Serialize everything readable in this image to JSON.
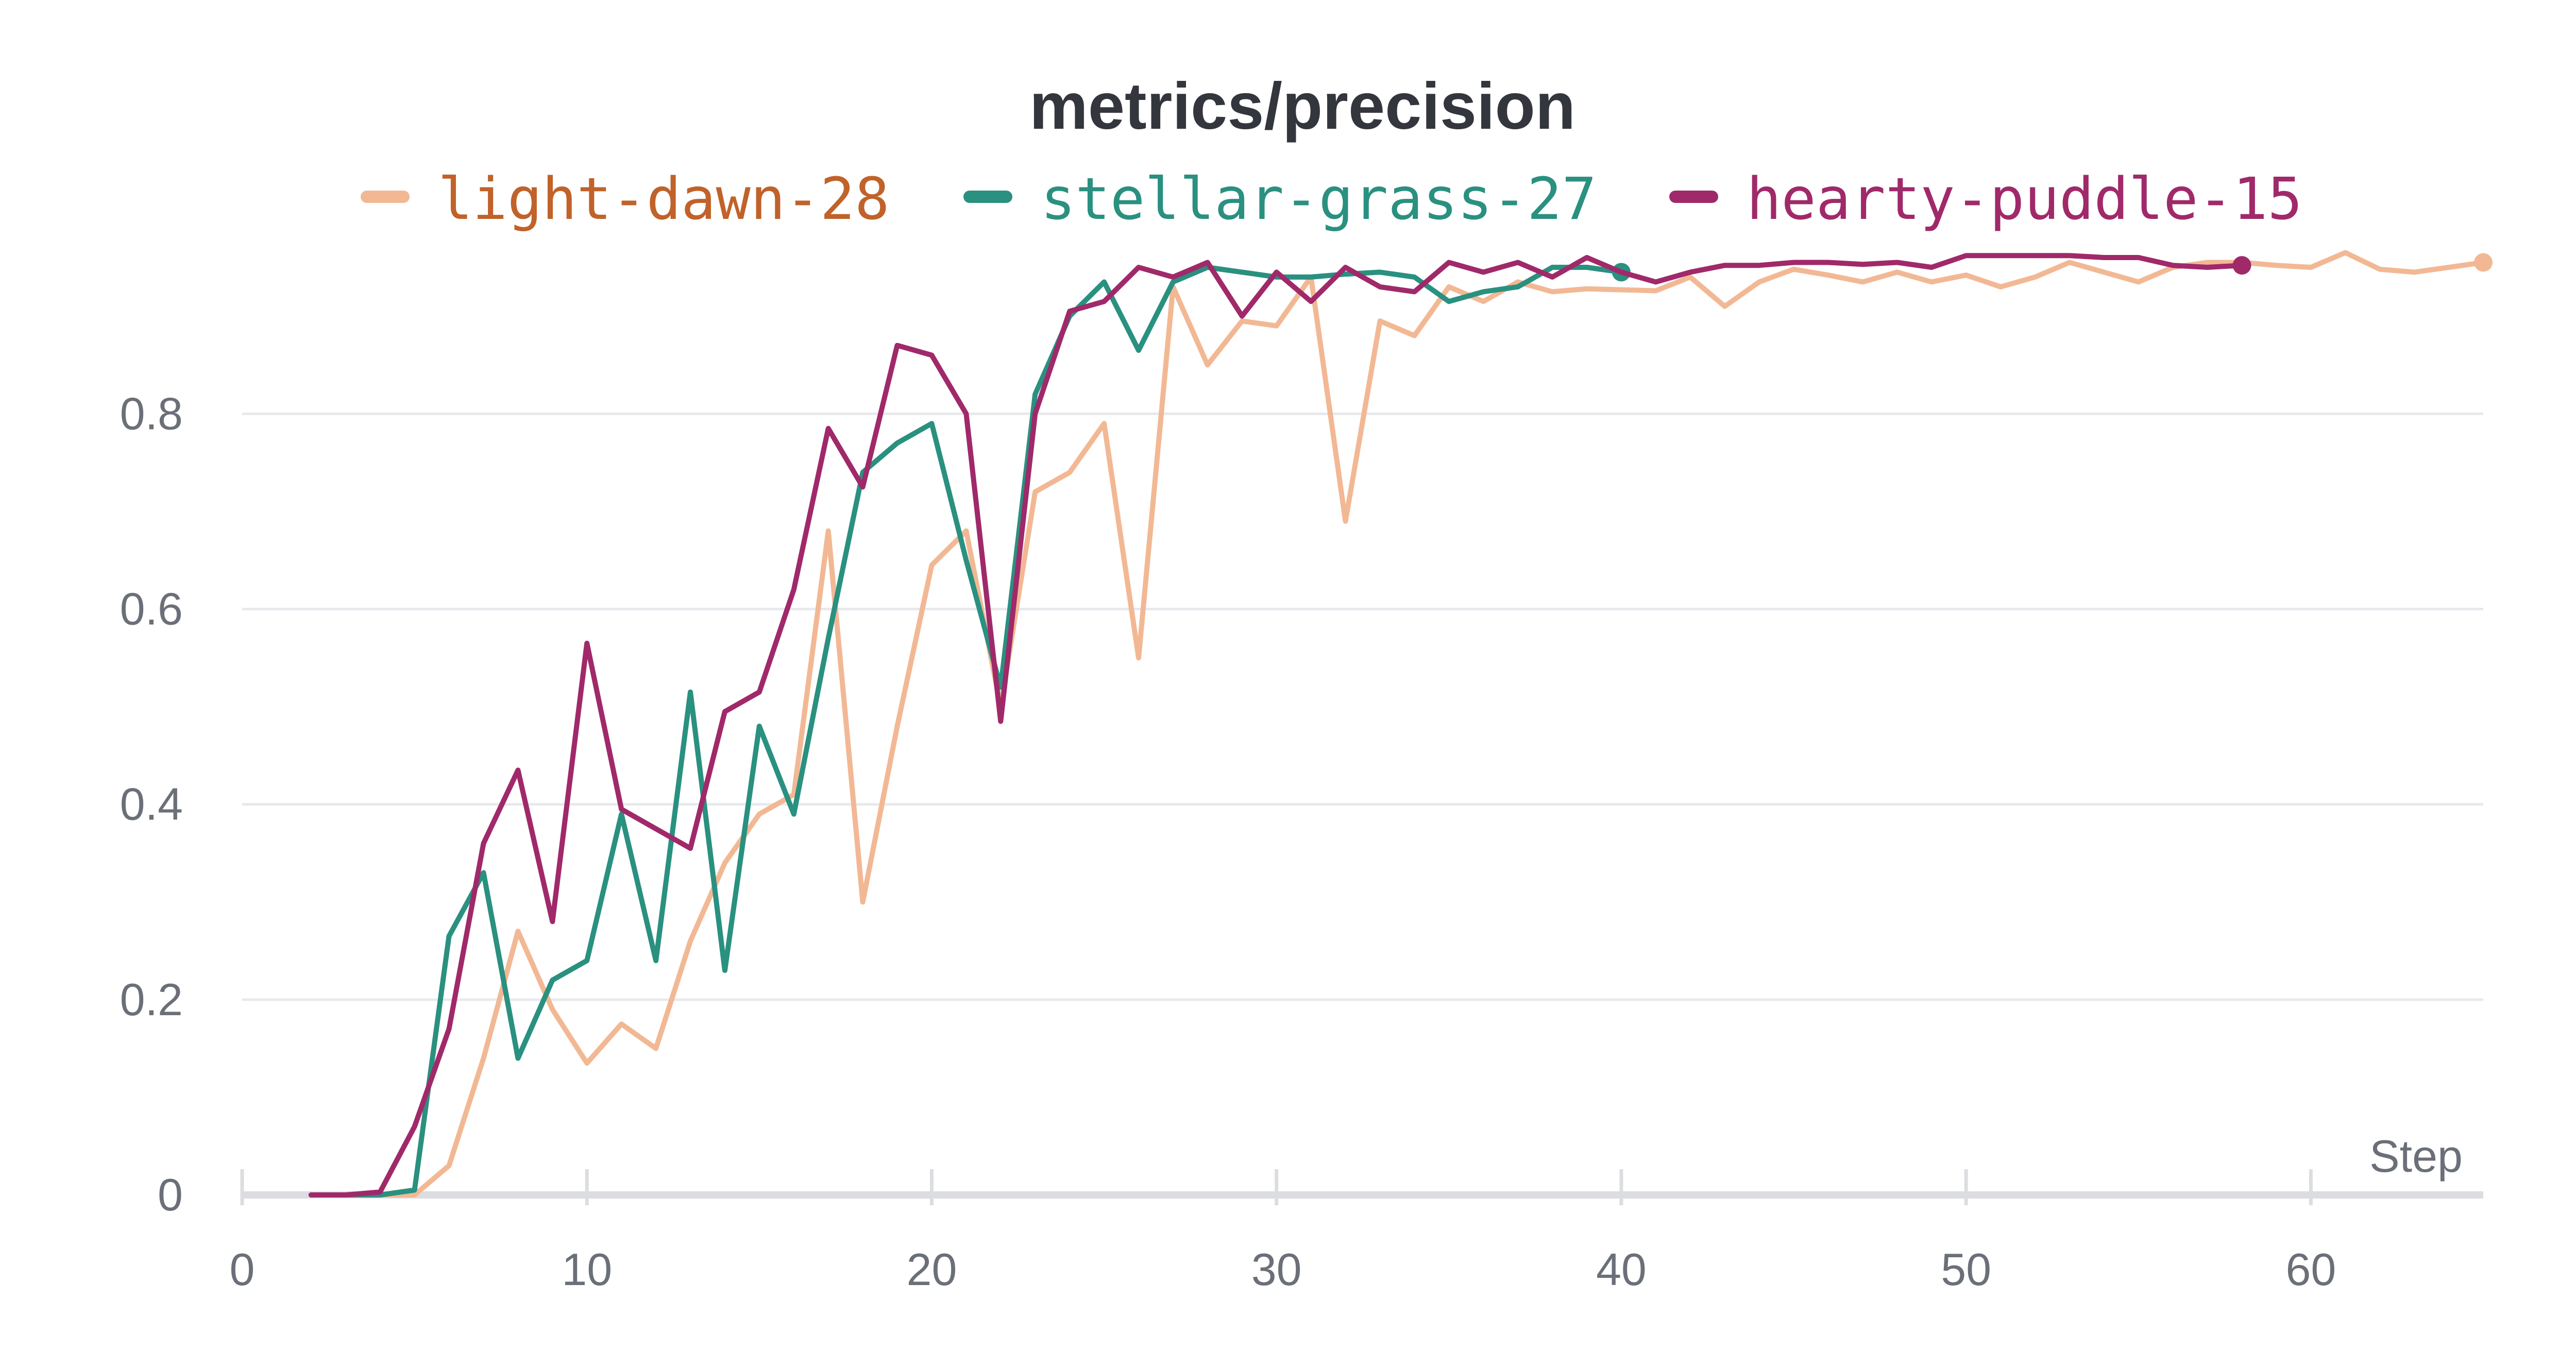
{
  "chart_data": {
    "type": "line",
    "title": "metrics/precision",
    "xlabel": "Step",
    "ylabel": "",
    "xlim": [
      0,
      65
    ],
    "ylim": [
      0,
      0.96
    ],
    "x_ticks": [
      0,
      10,
      20,
      30,
      40,
      50,
      60
    ],
    "y_ticks": [
      0,
      0.2,
      0.4,
      0.6,
      0.8
    ],
    "x_tick_labels": [
      "0",
      "10",
      "20",
      "30",
      "40",
      "50",
      "60"
    ],
    "y_tick_labels": [
      "0",
      "0.2",
      "0.4",
      "0.6",
      "0.8"
    ],
    "grid": true,
    "legend_position": "top",
    "series": [
      {
        "name": "light-dawn-28",
        "color": "#f2b894",
        "label_color": "#c0622a",
        "x": [
          2,
          3,
          4,
          5,
          6,
          7,
          8,
          9,
          10,
          11,
          12,
          13,
          14,
          15,
          16,
          17,
          18,
          19,
          20,
          21,
          22,
          23,
          24,
          25,
          26,
          27,
          28,
          29,
          30,
          31,
          32,
          33,
          34,
          35,
          36,
          37,
          38,
          39,
          40,
          41,
          42,
          43,
          44,
          45,
          46,
          47,
          48,
          49,
          50,
          51,
          52,
          53,
          54,
          55,
          56,
          57,
          58,
          59,
          60,
          61,
          62,
          63,
          64,
          65
        ],
        "y": [
          0,
          0,
          0,
          0,
          0.03,
          0.14,
          0.27,
          0.19,
          0.135,
          0.175,
          0.15,
          0.26,
          0.34,
          0.39,
          0.41,
          0.68,
          0.3,
          0.48,
          0.645,
          0.68,
          0.5,
          0.72,
          0.74,
          0.79,
          0.55,
          0.93,
          0.85,
          0.895,
          0.89,
          0.94,
          0.69,
          0.895,
          0.88,
          0.93,
          0.915,
          0.935,
          0.925,
          0.928,
          0.927,
          0.926,
          0.94,
          0.91,
          0.935,
          0.948,
          0.942,
          0.935,
          0.945,
          0.935,
          0.942,
          0.93,
          0.94,
          0.955,
          0.945,
          0.935,
          0.95,
          0.955,
          0.955,
          0.952,
          0.95,
          0.965,
          0.948,
          0.945,
          0.95,
          0.955
        ],
        "end_marker": true
      },
      {
        "name": "stellar-grass-27",
        "color": "#2a9080",
        "label_color": "#2a9080",
        "x": [
          2,
          3,
          4,
          5,
          6,
          7,
          8,
          9,
          10,
          11,
          12,
          13,
          14,
          15,
          16,
          17,
          18,
          19,
          20,
          21,
          22,
          23,
          24,
          25,
          26,
          27,
          28,
          29,
          30,
          31,
          32,
          33,
          34,
          35,
          36,
          37,
          38,
          39,
          40
        ],
        "y": [
          0,
          0,
          0,
          0.005,
          0.265,
          0.33,
          0.14,
          0.22,
          0.24,
          0.39,
          0.24,
          0.515,
          0.23,
          0.48,
          0.39,
          0.57,
          0.74,
          0.77,
          0.79,
          0.65,
          0.52,
          0.82,
          0.9,
          0.935,
          0.865,
          0.935,
          0.95,
          0.945,
          0.94,
          0.94,
          0.943,
          0.945,
          0.94,
          0.915,
          0.925,
          0.93,
          0.95,
          0.95,
          0.945
        ],
        "end_marker": true
      },
      {
        "name": "hearty-puddle-15",
        "color": "#a0296a",
        "label_color": "#a0296a",
        "x": [
          2,
          3,
          4,
          5,
          6,
          7,
          8,
          9,
          10,
          11,
          12,
          13,
          14,
          15,
          16,
          17,
          18,
          19,
          20,
          21,
          22,
          23,
          24,
          25,
          26,
          27,
          28,
          29,
          30,
          31,
          32,
          33,
          34,
          35,
          36,
          37,
          38,
          39,
          40,
          41,
          42,
          43,
          44,
          45,
          46,
          47,
          48,
          49,
          50,
          51,
          52,
          53,
          54,
          55,
          56,
          57,
          58
        ],
        "y": [
          0,
          0,
          0.003,
          0.07,
          0.17,
          0.36,
          0.435,
          0.28,
          0.565,
          0.395,
          0.375,
          0.355,
          0.495,
          0.515,
          0.62,
          0.785,
          0.725,
          0.87,
          0.86,
          0.8,
          0.485,
          0.8,
          0.905,
          0.915,
          0.95,
          0.94,
          0.955,
          0.9,
          0.945,
          0.915,
          0.95,
          0.93,
          0.925,
          0.955,
          0.945,
          0.955,
          0.94,
          0.96,
          0.945,
          0.935,
          0.945,
          0.952,
          0.952,
          0.955,
          0.955,
          0.953,
          0.955,
          0.95,
          0.962,
          0.962,
          0.962,
          0.962,
          0.96,
          0.96,
          0.952,
          0.95,
          0.952
        ],
        "end_marker": true
      }
    ]
  }
}
